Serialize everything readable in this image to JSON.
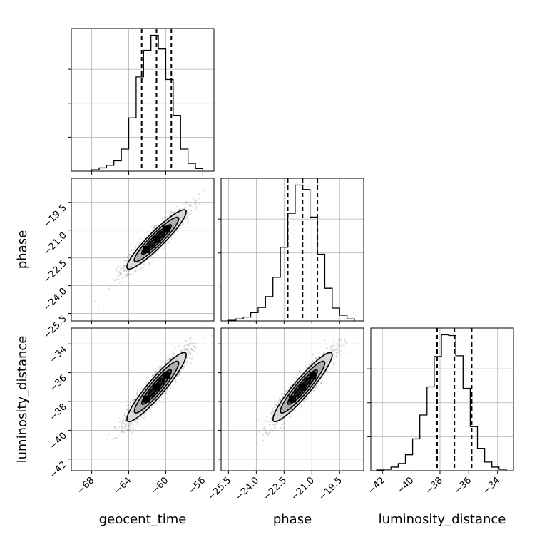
{
  "chart_data": {
    "type": "corner",
    "parameters": [
      "geocent_time",
      "phase",
      "luminosity_distance"
    ],
    "axis_labels": {
      "geocent_time": "geocent_time",
      "phase": "phase",
      "luminosity_distance": "luminosity_distance"
    },
    "ranges": {
      "geocent_time": [
        -70.2,
        -54.8
      ],
      "phase": [
        -25.9,
        -18.2
      ],
      "luminosity_distance": [
        -42.8,
        -32.9
      ]
    },
    "ticks": {
      "geocent_time": [
        -68,
        -64,
        -60,
        -56
      ],
      "phase": [
        -25.5,
        -24.0,
        -22.5,
        -21.0,
        -19.5
      ],
      "luminosity_distance": [
        -42,
        -40,
        -38,
        -36,
        -34
      ]
    },
    "tick_labels": {
      "geocent_time": [
        "−68",
        "−64",
        "−60",
        "−56"
      ],
      "phase": [
        "−25.5",
        "−24.0",
        "−22.5",
        "−21.0",
        "−19.5"
      ],
      "luminosity_distance": [
        "−42",
        "−40",
        "−38",
        "−36",
        "−34"
      ]
    },
    "quantiles": {
      "geocent_time": [
        -62.6,
        -61.0,
        -59.4
      ],
      "phase": [
        -22.3,
        -21.5,
        -20.7
      ],
      "luminosity_distance": [
        -38.2,
        -37.0,
        -35.8
      ]
    },
    "histograms": {
      "geocent_time": {
        "edges": [
          -68.0,
          -67.2,
          -66.4,
          -65.6,
          -64.8,
          -64.0,
          -63.2,
          -62.4,
          -61.6,
          -60.8,
          -60.0,
          -59.2,
          -58.4,
          -57.6,
          -56.8,
          -56.0
        ],
        "counts": [
          2,
          5,
          9,
          16,
          34,
          82,
          145,
          186,
          209,
          188,
          141,
          86,
          34,
          12,
          4
        ]
      },
      "phase": {
        "edges": [
          -25.5,
          -25.1,
          -24.7,
          -24.3,
          -23.9,
          -23.5,
          -23.1,
          -22.7,
          -22.3,
          -21.9,
          -21.5,
          -21.1,
          -20.7,
          -20.3,
          -19.9,
          -19.5,
          -19.1,
          -18.7
        ],
        "counts": [
          1,
          3,
          6,
          13,
          21,
          38,
          68,
          115,
          168,
          212,
          205,
          162,
          104,
          51,
          20,
          9,
          3
        ]
      },
      "luminosity_distance": {
        "edges": [
          -42.4,
          -41.9,
          -41.4,
          -40.9,
          -40.4,
          -39.9,
          -39.4,
          -38.9,
          -38.4,
          -37.9,
          -37.4,
          -36.9,
          -36.4,
          -35.9,
          -35.4,
          -34.9,
          -34.4,
          -33.9,
          -33.4
        ],
        "counts": [
          1,
          2,
          5,
          10,
          22,
          44,
          77,
          116,
          158,
          188,
          187,
          159,
          114,
          61,
          31,
          12,
          5,
          2
        ]
      }
    },
    "contour_levels": [
      "0.5σ",
      "1σ",
      "1.5σ",
      "2σ"
    ],
    "layout": "lower-triangle 3x3"
  }
}
